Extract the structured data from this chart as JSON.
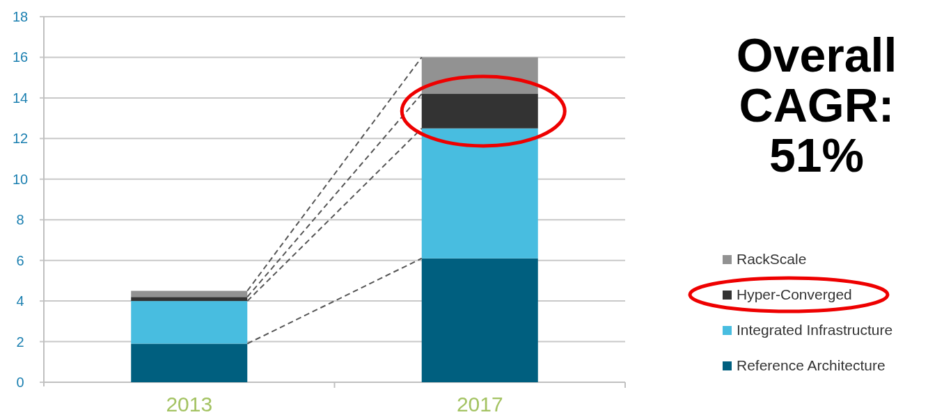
{
  "chart_data": {
    "type": "bar",
    "stacked": true,
    "categories": [
      "2013",
      "2017"
    ],
    "series": [
      {
        "name": "Reference Architecture",
        "color": "#005f7f",
        "values": [
          1.9,
          6.1
        ]
      },
      {
        "name": "Integrated Infrastructure",
        "color": "#48bde0",
        "values": [
          2.1,
          6.4
        ]
      },
      {
        "name": "Hyper-Converged",
        "color": "#333333",
        "values": [
          0.2,
          1.7
        ]
      },
      {
        "name": "RackScale",
        "color": "#929292",
        "values": [
          0.3,
          1.8
        ]
      }
    ],
    "ylim": [
      0,
      18
    ],
    "yticks": [
      0,
      2,
      4,
      6,
      8,
      10,
      12,
      14,
      16,
      18
    ],
    "grid": "y",
    "legend": "right",
    "annotations": [
      "Overall CAGR: 51%"
    ]
  }
}
